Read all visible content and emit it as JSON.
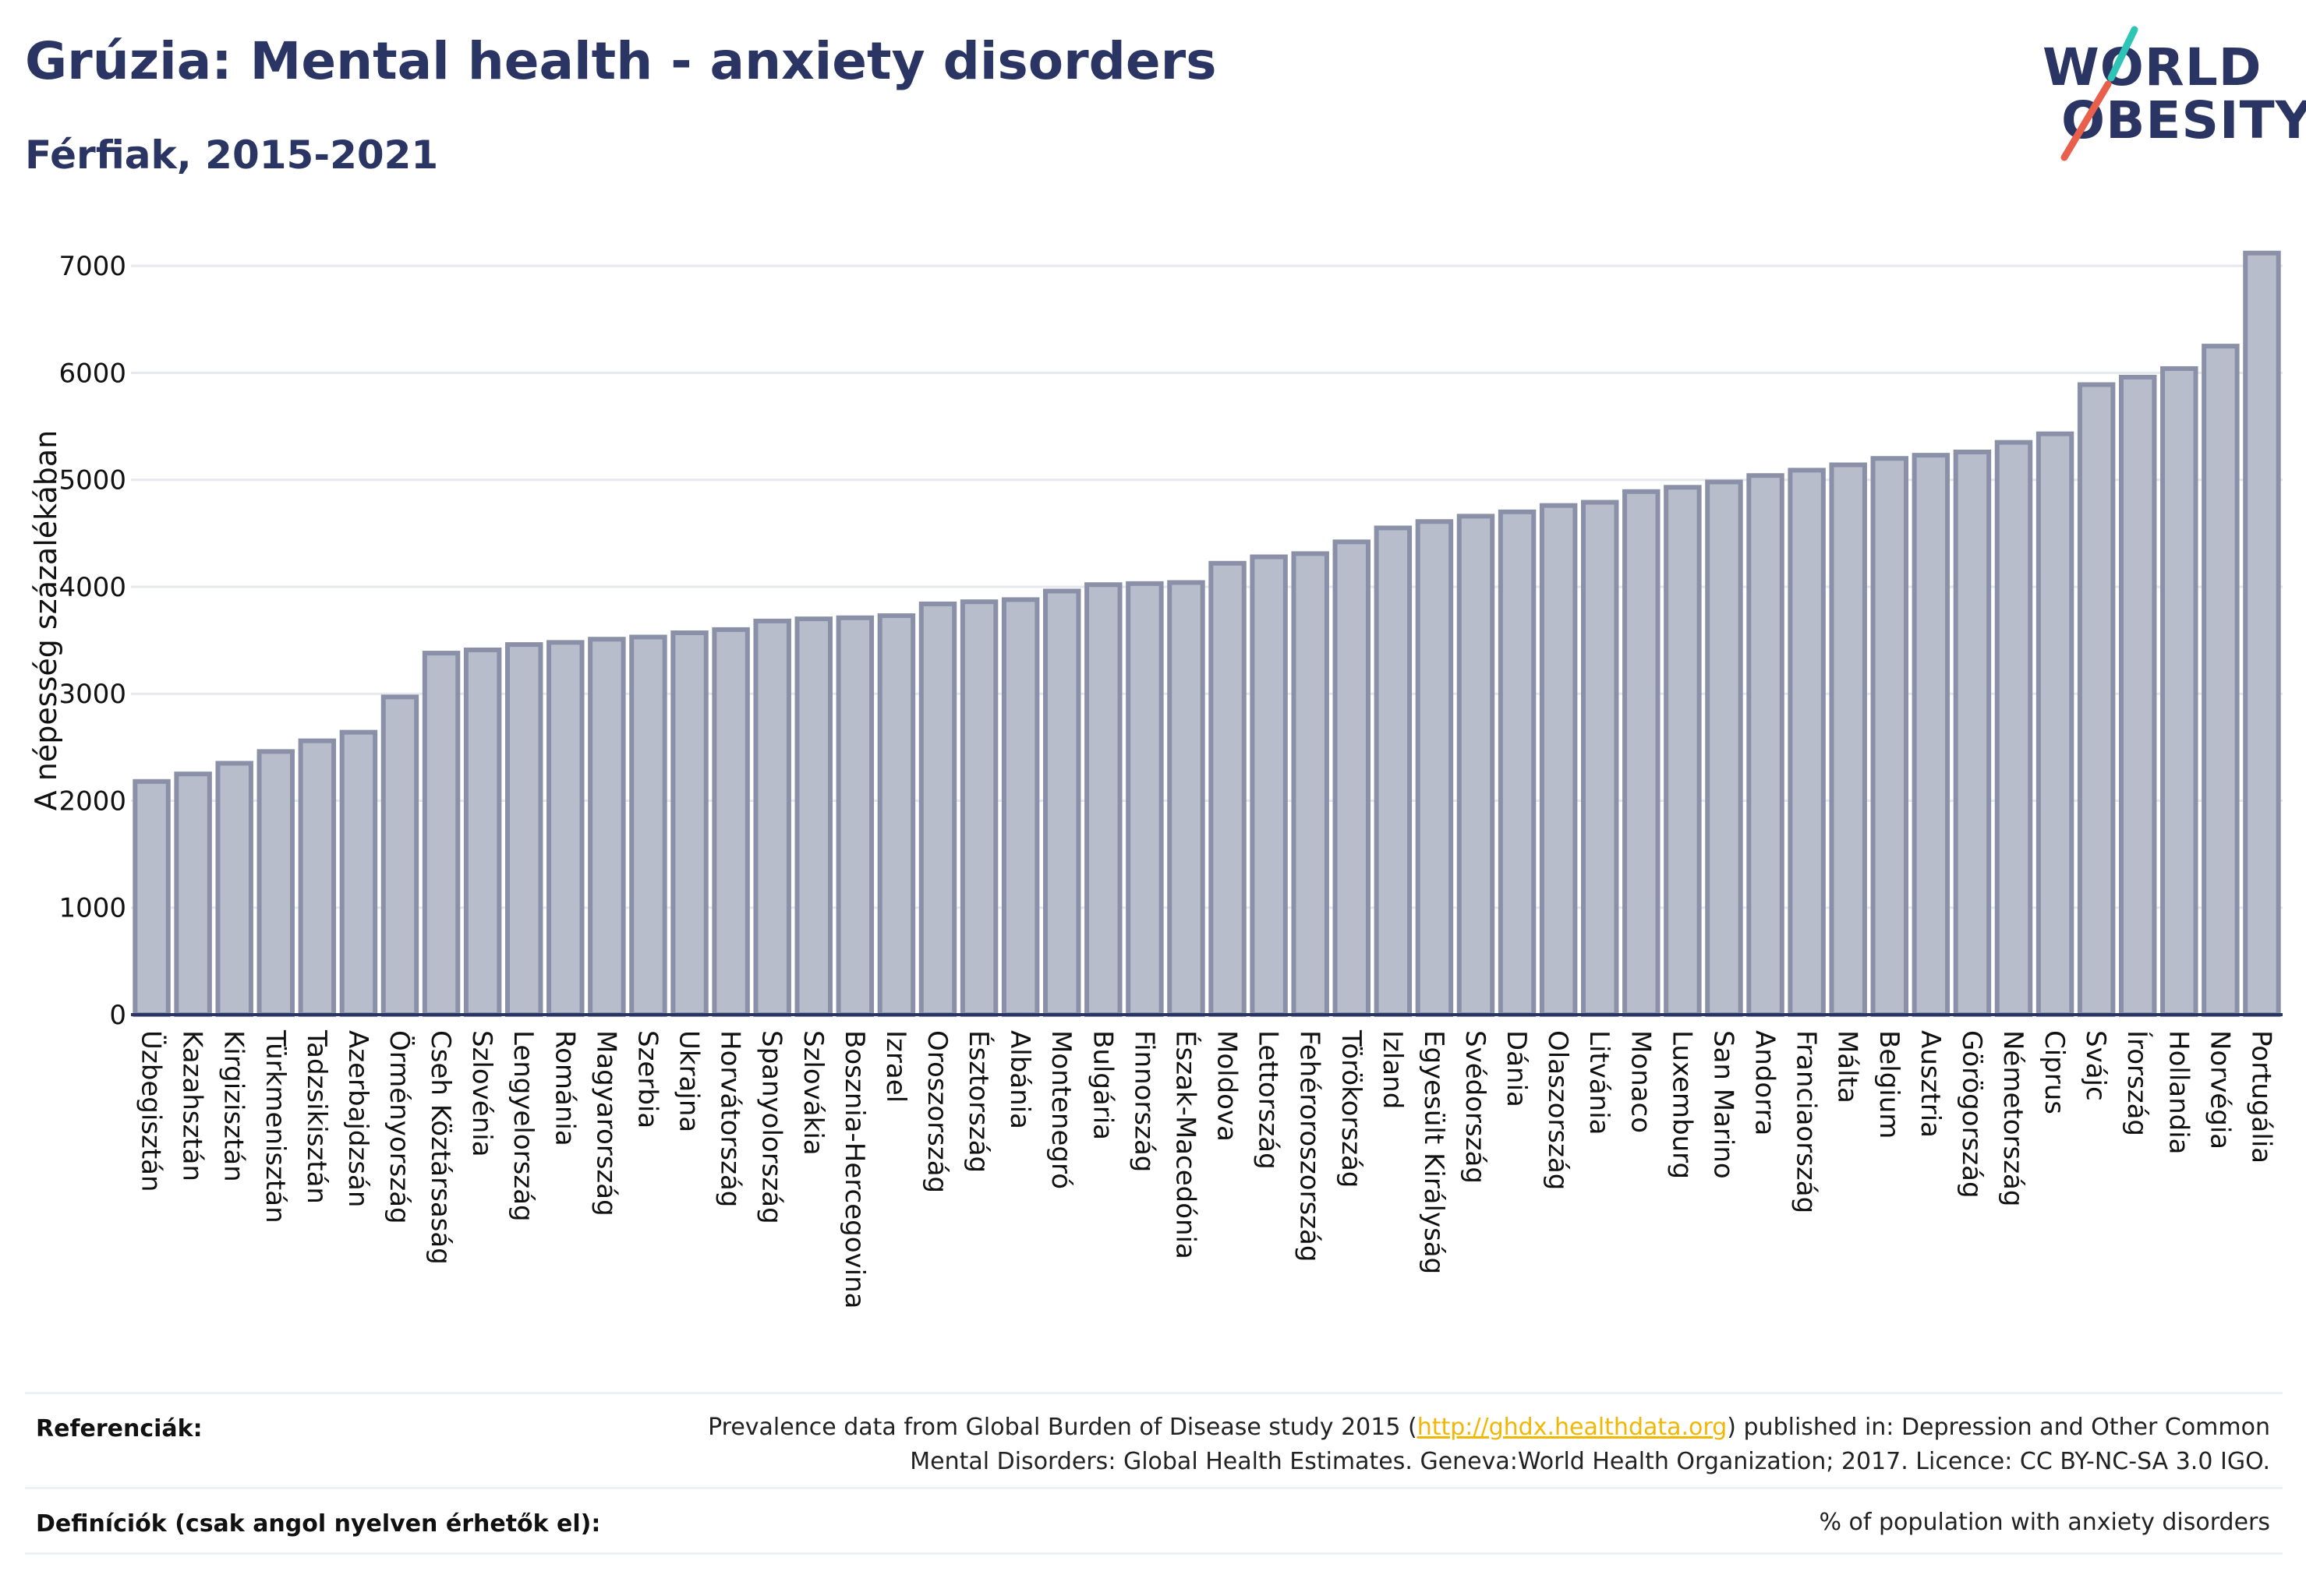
{
  "header": {
    "title": "Grúzia: Mental health - anxiety disorders",
    "subtitle": "Férfiak, 2015-2021"
  },
  "logo": {
    "line1": "WORLD",
    "line2": "OBESITY",
    "colors": {
      "text": "#2b3563",
      "slash_top": "#2ec4b6",
      "slash_bottom": "#e8604c"
    }
  },
  "colors": {
    "bar_fill": "#b8bdcc",
    "bar_stroke": "#8a90a8",
    "axis": "#2b3563",
    "grid": "#e6e8ee"
  },
  "chart_data": {
    "type": "bar",
    "ylabel": "A népesség százalékában",
    "ylim": [
      0,
      7300
    ],
    "yticks": [
      0,
      1000,
      2000,
      3000,
      4000,
      5000,
      6000,
      7000
    ],
    "grid": true,
    "categories": [
      "Üzbegisztán",
      "Kazahsztán",
      "Kirgizisztán",
      "Türkmenisztán",
      "Tadzsikisztán",
      "Azerbajdzsán",
      "Örményország",
      "Cseh Köztársaság",
      "Szlovénia",
      "Lengyelország",
      "Románia",
      "Magyarország",
      "Szerbia",
      "Ukrajna",
      "Horvátország",
      "Spanyolország",
      "Szlovákia",
      "Bosznia-Hercegovina",
      "Izrael",
      "Oroszország",
      "Észtország",
      "Albánia",
      "Montenegró",
      "Bulgária",
      "Finnország",
      "Észak-Macedónia",
      "Moldova",
      "Lettország",
      "Fehéroroszország",
      "Törökország",
      "Izland",
      "Egyesült Királyság",
      "Svédország",
      "Dánia",
      "Olaszország",
      "Litvánia",
      "Monaco",
      "Luxemburg",
      "San Marino",
      "Andorra",
      "Franciaország",
      "Málta",
      "Belgium",
      "Ausztria",
      "Görögország",
      "Németország",
      "Ciprus",
      "Svájc",
      "Írország",
      "Hollandia",
      "Norvégia",
      "Portugália"
    ],
    "values": [
      2180,
      2250,
      2350,
      2460,
      2560,
      2640,
      2970,
      3380,
      3410,
      3460,
      3480,
      3510,
      3530,
      3570,
      3600,
      3680,
      3700,
      3710,
      3730,
      3840,
      3860,
      3880,
      3960,
      4020,
      4030,
      4040,
      4220,
      4280,
      4310,
      4420,
      4550,
      4610,
      4660,
      4700,
      4760,
      4790,
      4890,
      4930,
      4980,
      5040,
      5090,
      5140,
      5200,
      5230,
      5260,
      5350,
      5430,
      5890,
      5960,
      6040,
      6250,
      7120
    ]
  },
  "footer": {
    "references_label": "Referenciák:",
    "references_text_before": "Prevalence data from Global Burden of Disease study 2015 (",
    "references_link": "http://ghdx.healthdata.org",
    "references_text_after": ") published in: Depression and Other Common",
    "references_text_line2": "Mental Disorders: Global Health Estimates. Geneva:World Health Organization; 2017. Licence: CC BY-NC-SA 3.0 IGO.",
    "definitions_label": "Definíciók (csak angol nyelven érhetők el):",
    "definitions_text": "% of population with anxiety disorders"
  }
}
